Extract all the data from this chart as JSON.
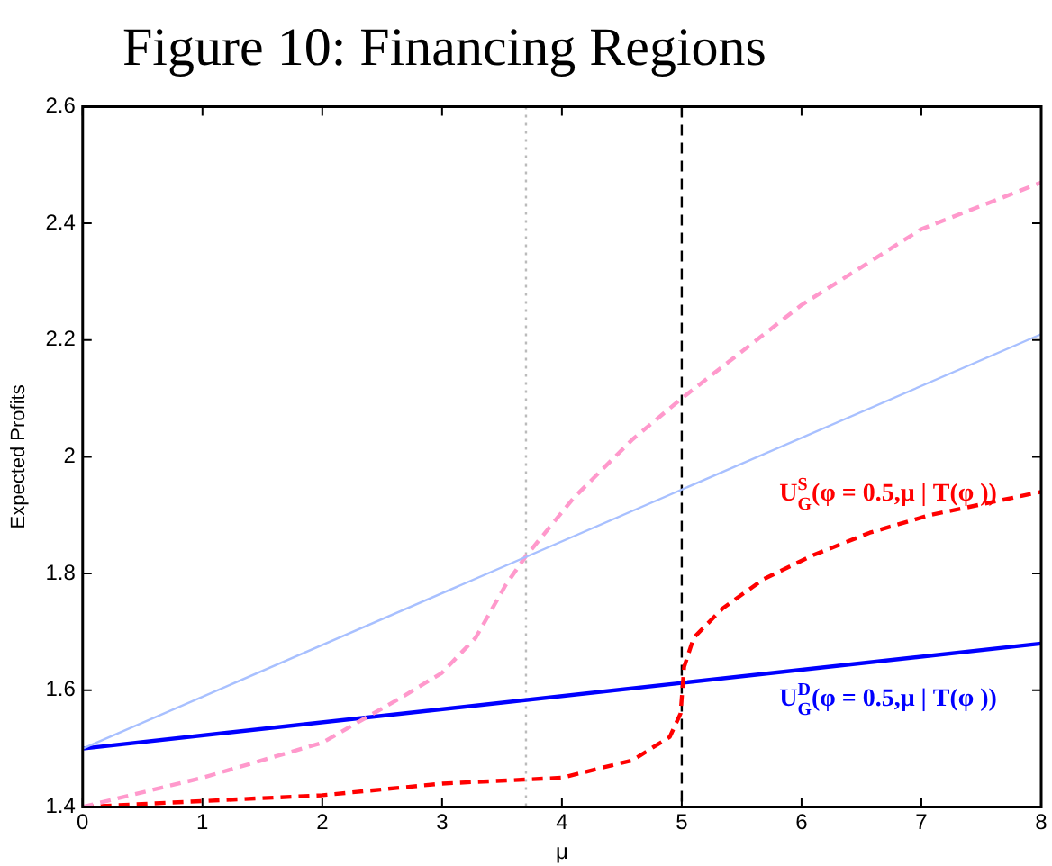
{
  "chart_data": {
    "type": "line",
    "title": "Figure 10: Financing Regions",
    "xlabel": "μ",
    "ylabel": "Expected Profits",
    "xlim": [
      0,
      8
    ],
    "xticks": [
      0,
      1,
      2,
      3,
      4,
      5,
      6,
      7,
      8
    ],
    "ylim": [
      1.4,
      2.6
    ],
    "yticks": [
      1.4,
      1.6,
      1.8,
      2,
      2.2,
      2.4,
      2.6
    ],
    "grid": false,
    "legend": false,
    "marker": "none",
    "series": [
      {
        "color": "#a8c0ff",
        "line_style": "solid",
        "x": [
          0,
          8
        ],
        "values": [
          1.5,
          2.21
        ]
      },
      {
        "color": "#ff99cc",
        "line_style": "dashed",
        "x": [
          0,
          1,
          2,
          2.68,
          3,
          3.28,
          3.53,
          3.7,
          4.1,
          4.59,
          5,
          6,
          7,
          8
        ],
        "values": [
          1.4,
          1.45,
          1.51,
          1.59,
          1.63,
          1.69,
          1.78,
          1.83,
          1.93,
          2.03,
          2.1,
          2.26,
          2.39,
          2.47
        ]
      },
      {
        "name": "U$^{S}$$_{G}$(φ = 0.5,μ | T(φ ))",
        "color": "#ff0000",
        "line_style": "dashed",
        "x": [
          0,
          1,
          2,
          3,
          4,
          4.59,
          4.9,
          4.99,
          5.02,
          5.1,
          5.34,
          5.68,
          6.08,
          6.57,
          7.07,
          8
        ],
        "values": [
          1.4,
          1.41,
          1.42,
          1.44,
          1.45,
          1.48,
          1.52,
          1.56,
          1.64,
          1.69,
          1.74,
          1.79,
          1.83,
          1.87,
          1.9,
          1.94
        ]
      },
      {
        "name": "U$^{D}$$_{G}$(φ = 0.5,μ | T(φ ))",
        "color": "#0000ff",
        "line_style": "solid",
        "x": [
          0,
          8
        ],
        "values": [
          1.5,
          1.68
        ]
      }
    ],
    "ref_lines": [
      {
        "axis": "x",
        "value": 3.7,
        "color": "#bbbbbb",
        "line_style": "dotted"
      },
      {
        "axis": "x",
        "value": 5,
        "color": "#000000",
        "line_style": "dashed"
      }
    ]
  }
}
